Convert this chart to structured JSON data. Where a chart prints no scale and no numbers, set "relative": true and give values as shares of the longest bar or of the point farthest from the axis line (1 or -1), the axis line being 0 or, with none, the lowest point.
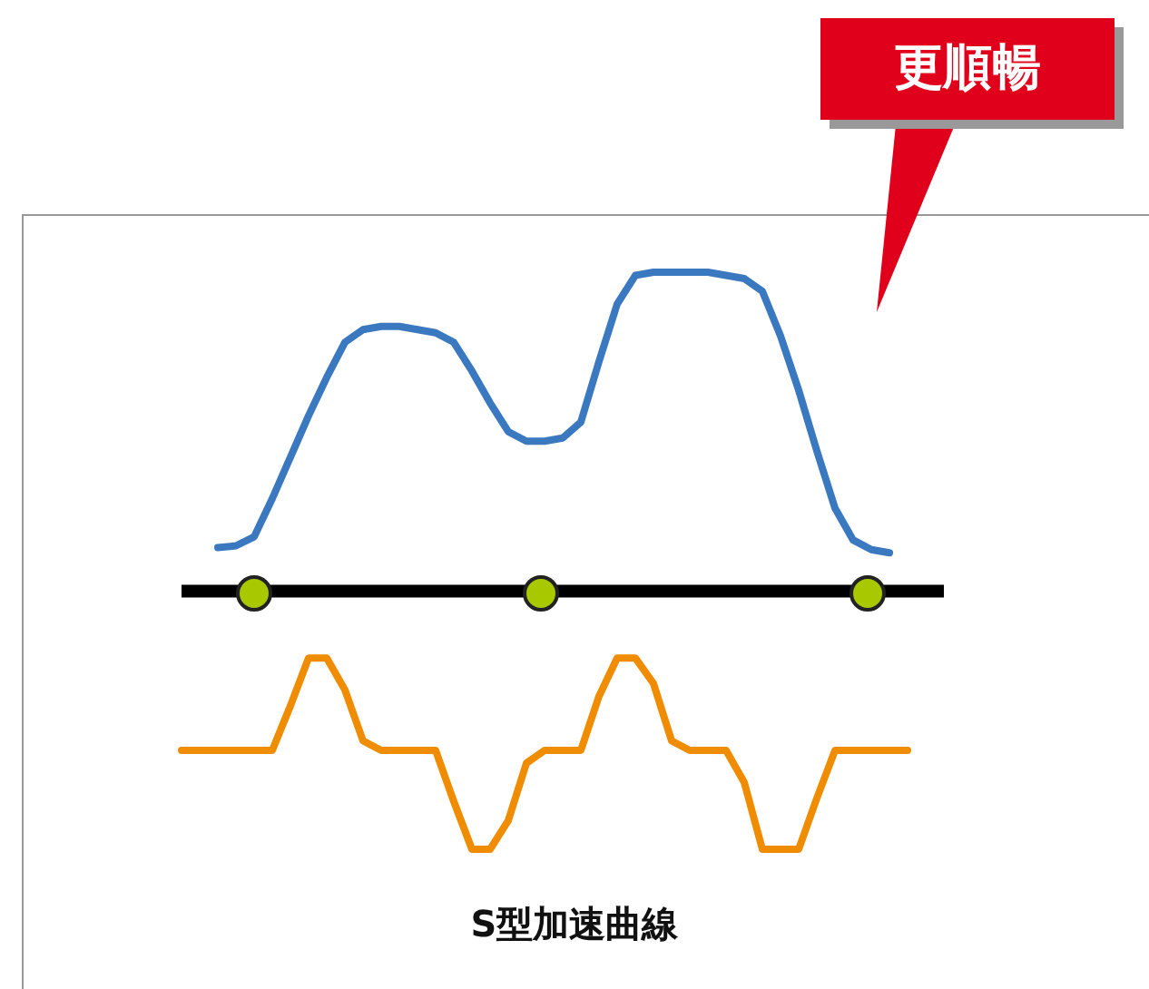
{
  "chart_data": {
    "type": "line",
    "relative": true,
    "xlabel": "S型加速曲線",
    "annotations": [
      "更順暢"
    ],
    "legend": false,
    "marker": "none",
    "categories": [
      null,
      null,
      null,
      null,
      null,
      null,
      null,
      null,
      null,
      null,
      null,
      null,
      null,
      null,
      null,
      null,
      null,
      null,
      null,
      null,
      null,
      null,
      null,
      null,
      null,
      null,
      null,
      null,
      null,
      null,
      null,
      null,
      null,
      null,
      null,
      null,
      null,
      null,
      null,
      null,
      null,
      null,
      null
    ],
    "series": [
      {
        "color": "#3a78c0",
        "values": [
          null,
          null,
          0.136,
          0.142,
          0.17,
          0.29,
          0.42,
          0.55,
          0.67,
          0.78,
          0.82,
          0.83,
          0.83,
          0.82,
          0.81,
          0.78,
          0.69,
          0.59,
          0.5,
          0.47,
          0.47,
          0.48,
          0.53,
          0.72,
          0.9,
          0.99,
          1,
          1,
          1,
          1,
          0.99,
          0.98,
          0.94,
          0.8,
          0.63,
          0.44,
          0.26,
          0.16,
          0.13,
          0.12,
          null,
          null,
          null
        ]
      },
      {
        "color": "#f08c00",
        "values": [
          -0.5,
          -0.5,
          -0.5,
          -0.5,
          -0.5,
          -0.5,
          -0.36,
          -0.21,
          -0.21,
          -0.31,
          -0.47,
          -0.5,
          -0.5,
          -0.5,
          -0.5,
          -0.66,
          -0.81,
          -0.81,
          -0.72,
          -0.54,
          -0.5,
          -0.5,
          -0.5,
          -0.33,
          -0.21,
          -0.21,
          -0.29,
          -0.47,
          -0.5,
          -0.5,
          -0.5,
          -0.6,
          -0.81,
          -0.81,
          -0.81,
          -0.65,
          -0.5,
          -0.5,
          -0.5,
          -0.5,
          -0.5,
          null,
          null
        ]
      }
    ]
  }
}
